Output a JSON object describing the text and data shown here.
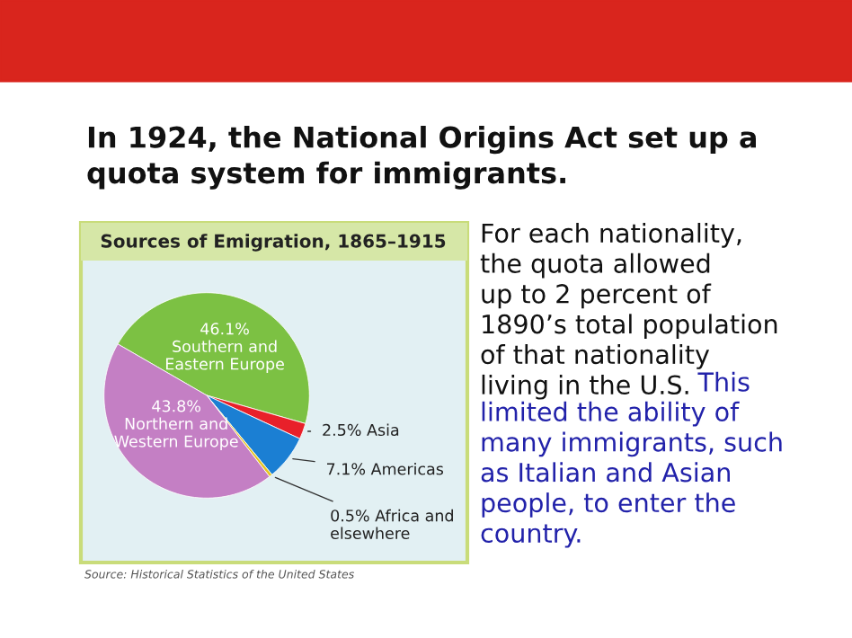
{
  "chart_data": {
    "type": "pie",
    "title": "In 1924, the National Origins Act set up a\nquota system for immigrants.",
    "subtitle": "Sources of Emigration, 1865–1915",
    "categories": [
      "Southern and\nEastern Europe",
      "Asia",
      "Americas",
      "Africa and\nelsewhere",
      "Northern and\nWestern Europe"
    ],
    "values": [
      46.1,
      2.5,
      7.1,
      0.5,
      43.8
    ],
    "value_labels": [
      "46.1%",
      "2.5%",
      "7.1%",
      "0.5%",
      "43.8%"
    ],
    "colors": [
      "#7cc143",
      "#e8202a",
      "#1b7fd3",
      "#e6c522",
      "#c47fc4"
    ],
    "annotations": [
      "Source: Historical Statistics of the United States",
      "For each nationality,\nthe quota allowed\nup to 2 percent of\n1890’s total population\nof that nationality\nliving in the U.S.",
      "This\nlimited the ability of\nmany immigrants, such\nas Italian and Asian\npeople, to enter the\ncountry."
    ]
  }
}
